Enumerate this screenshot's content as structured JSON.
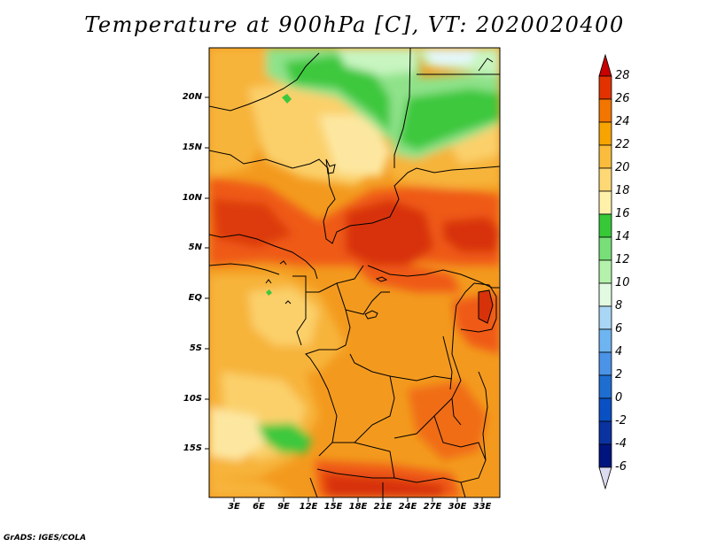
{
  "title": "Temperature at 900hPa [C], VT: 2020020400",
  "credit": "GrADS: IGES/COLA",
  "lat_labels": [
    "20N",
    "15N",
    "10N",
    "5N",
    "EQ",
    "5S",
    "10S",
    "15S"
  ],
  "lon_labels": [
    "3E",
    "6E",
    "9E",
    "12E",
    "15E",
    "18E",
    "21E",
    "24E",
    "27E",
    "30E",
    "33E"
  ],
  "colorbar": {
    "labels": [
      "28",
      "26",
      "24",
      "22",
      "20",
      "18",
      "16",
      "14",
      "12",
      "10",
      "8",
      "6",
      "4",
      "2",
      "0",
      "-2",
      "-4",
      "-6"
    ],
    "colors": [
      "#a60000",
      "#e23200",
      "#f27500",
      "#f7a400",
      "#fabc3c",
      "#fdd875",
      "#fff1aa",
      "#37c837",
      "#78de78",
      "#b4f2ac",
      "#e1fae1",
      "#a9d6f5",
      "#6eb4f0",
      "#4a93e6",
      "#1e6ed2",
      "#0a50c3",
      "#0a32a0",
      "#00147f"
    ],
    "min_color": "#dcdcf0",
    "max_color": "#c80000"
  },
  "colors": {
    "background": "#ffffff",
    "hot_core": "#d8320a",
    "hot": "#ef5a12",
    "warm": "#f39a1e",
    "mild": "#f7b43a",
    "cool": "#fbd06a",
    "pale": "#fde7a0",
    "green": "#3ec83e",
    "light_green": "#8fe28a",
    "pale_green": "#c8f5c0",
    "pale_blue": "#e6f6fa"
  }
}
